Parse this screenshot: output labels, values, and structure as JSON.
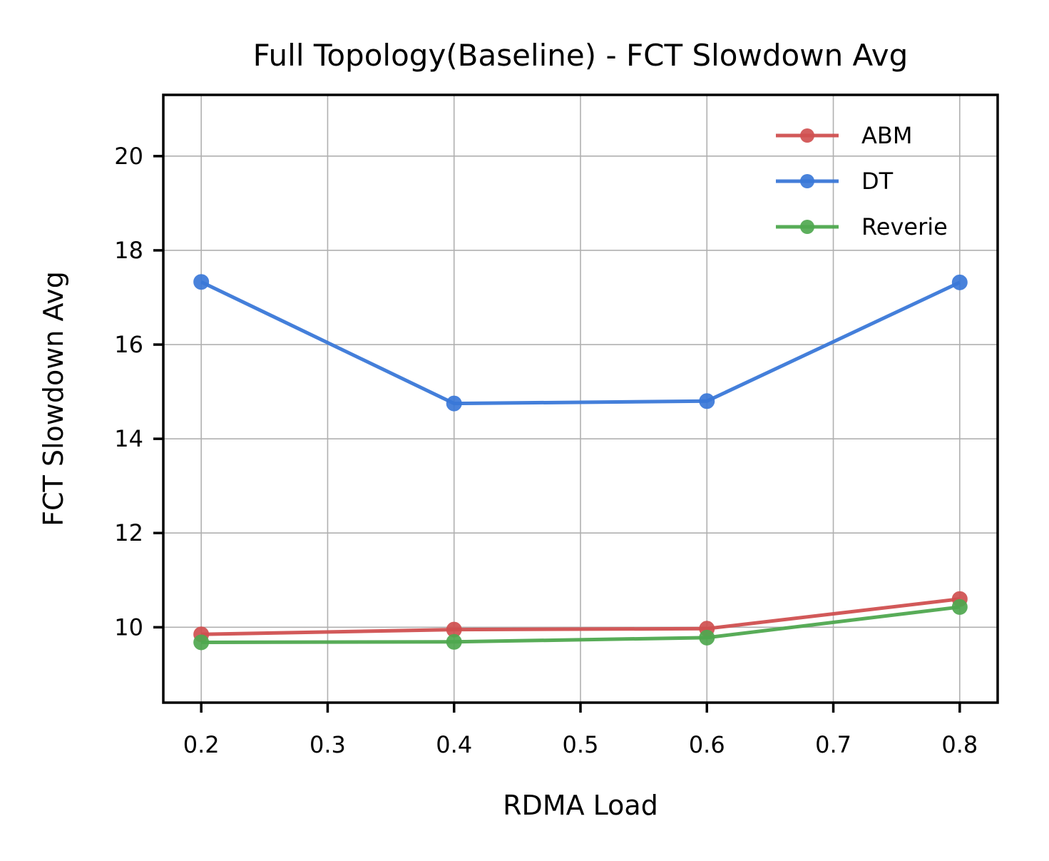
{
  "chart_data": {
    "type": "line",
    "title": "Full Topology(Baseline) - FCT Slowdown Avg",
    "xlabel": "RDMA Load",
    "ylabel": "FCT Slowdown Avg",
    "x": [
      0.2,
      0.4,
      0.6,
      0.8
    ],
    "xlim": [
      0.17,
      0.83
    ],
    "ylim": [
      8.4,
      21.3
    ],
    "xticks": [
      "0.2",
      "0.3",
      "0.4",
      "0.5",
      "0.6",
      "0.7",
      "0.8"
    ],
    "yticks": [
      "10",
      "12",
      "14",
      "16",
      "18",
      "20"
    ],
    "grid": true,
    "legend_position": "upper right",
    "series": [
      {
        "name": "ABM",
        "color": "#d05050",
        "values": [
          9.85,
          9.95,
          9.97,
          10.6
        ]
      },
      {
        "name": "DT",
        "color": "#3a78d8",
        "values": [
          17.33,
          14.75,
          14.8,
          17.32
        ]
      },
      {
        "name": "Reverie",
        "color": "#4fa84f",
        "values": [
          9.68,
          9.69,
          9.78,
          10.43
        ]
      }
    ]
  }
}
